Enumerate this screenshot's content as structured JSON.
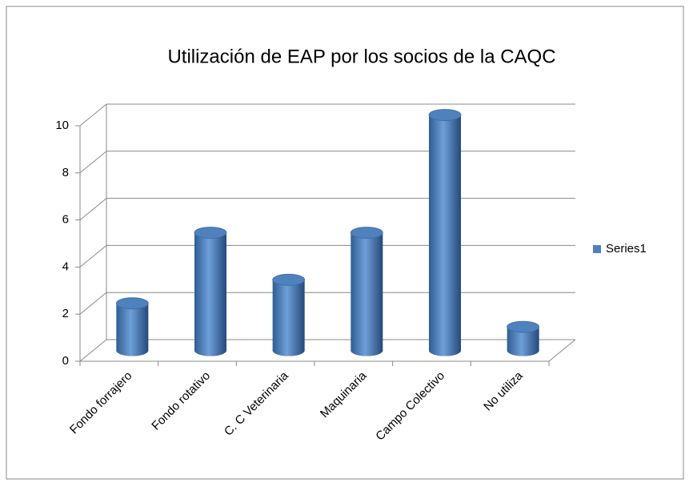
{
  "chart_data": {
    "type": "bar3d",
    "title": "Utilización de EAP por los socios de la CAQC",
    "categories": [
      "Fondo forrajero",
      "Fondo rotativo",
      "C. C Veterinaria",
      "Maquinaria",
      "Campo Colectivo",
      "No utiliza"
    ],
    "series": [
      {
        "name": "Series1",
        "color": "#4f81bd",
        "values": [
          2,
          5,
          3,
          5,
          10,
          1
        ]
      }
    ],
    "ylim": [
      0,
      10
    ],
    "yticks": [
      0,
      2,
      4,
      6,
      8,
      10
    ],
    "grid": true,
    "legend": "right"
  }
}
